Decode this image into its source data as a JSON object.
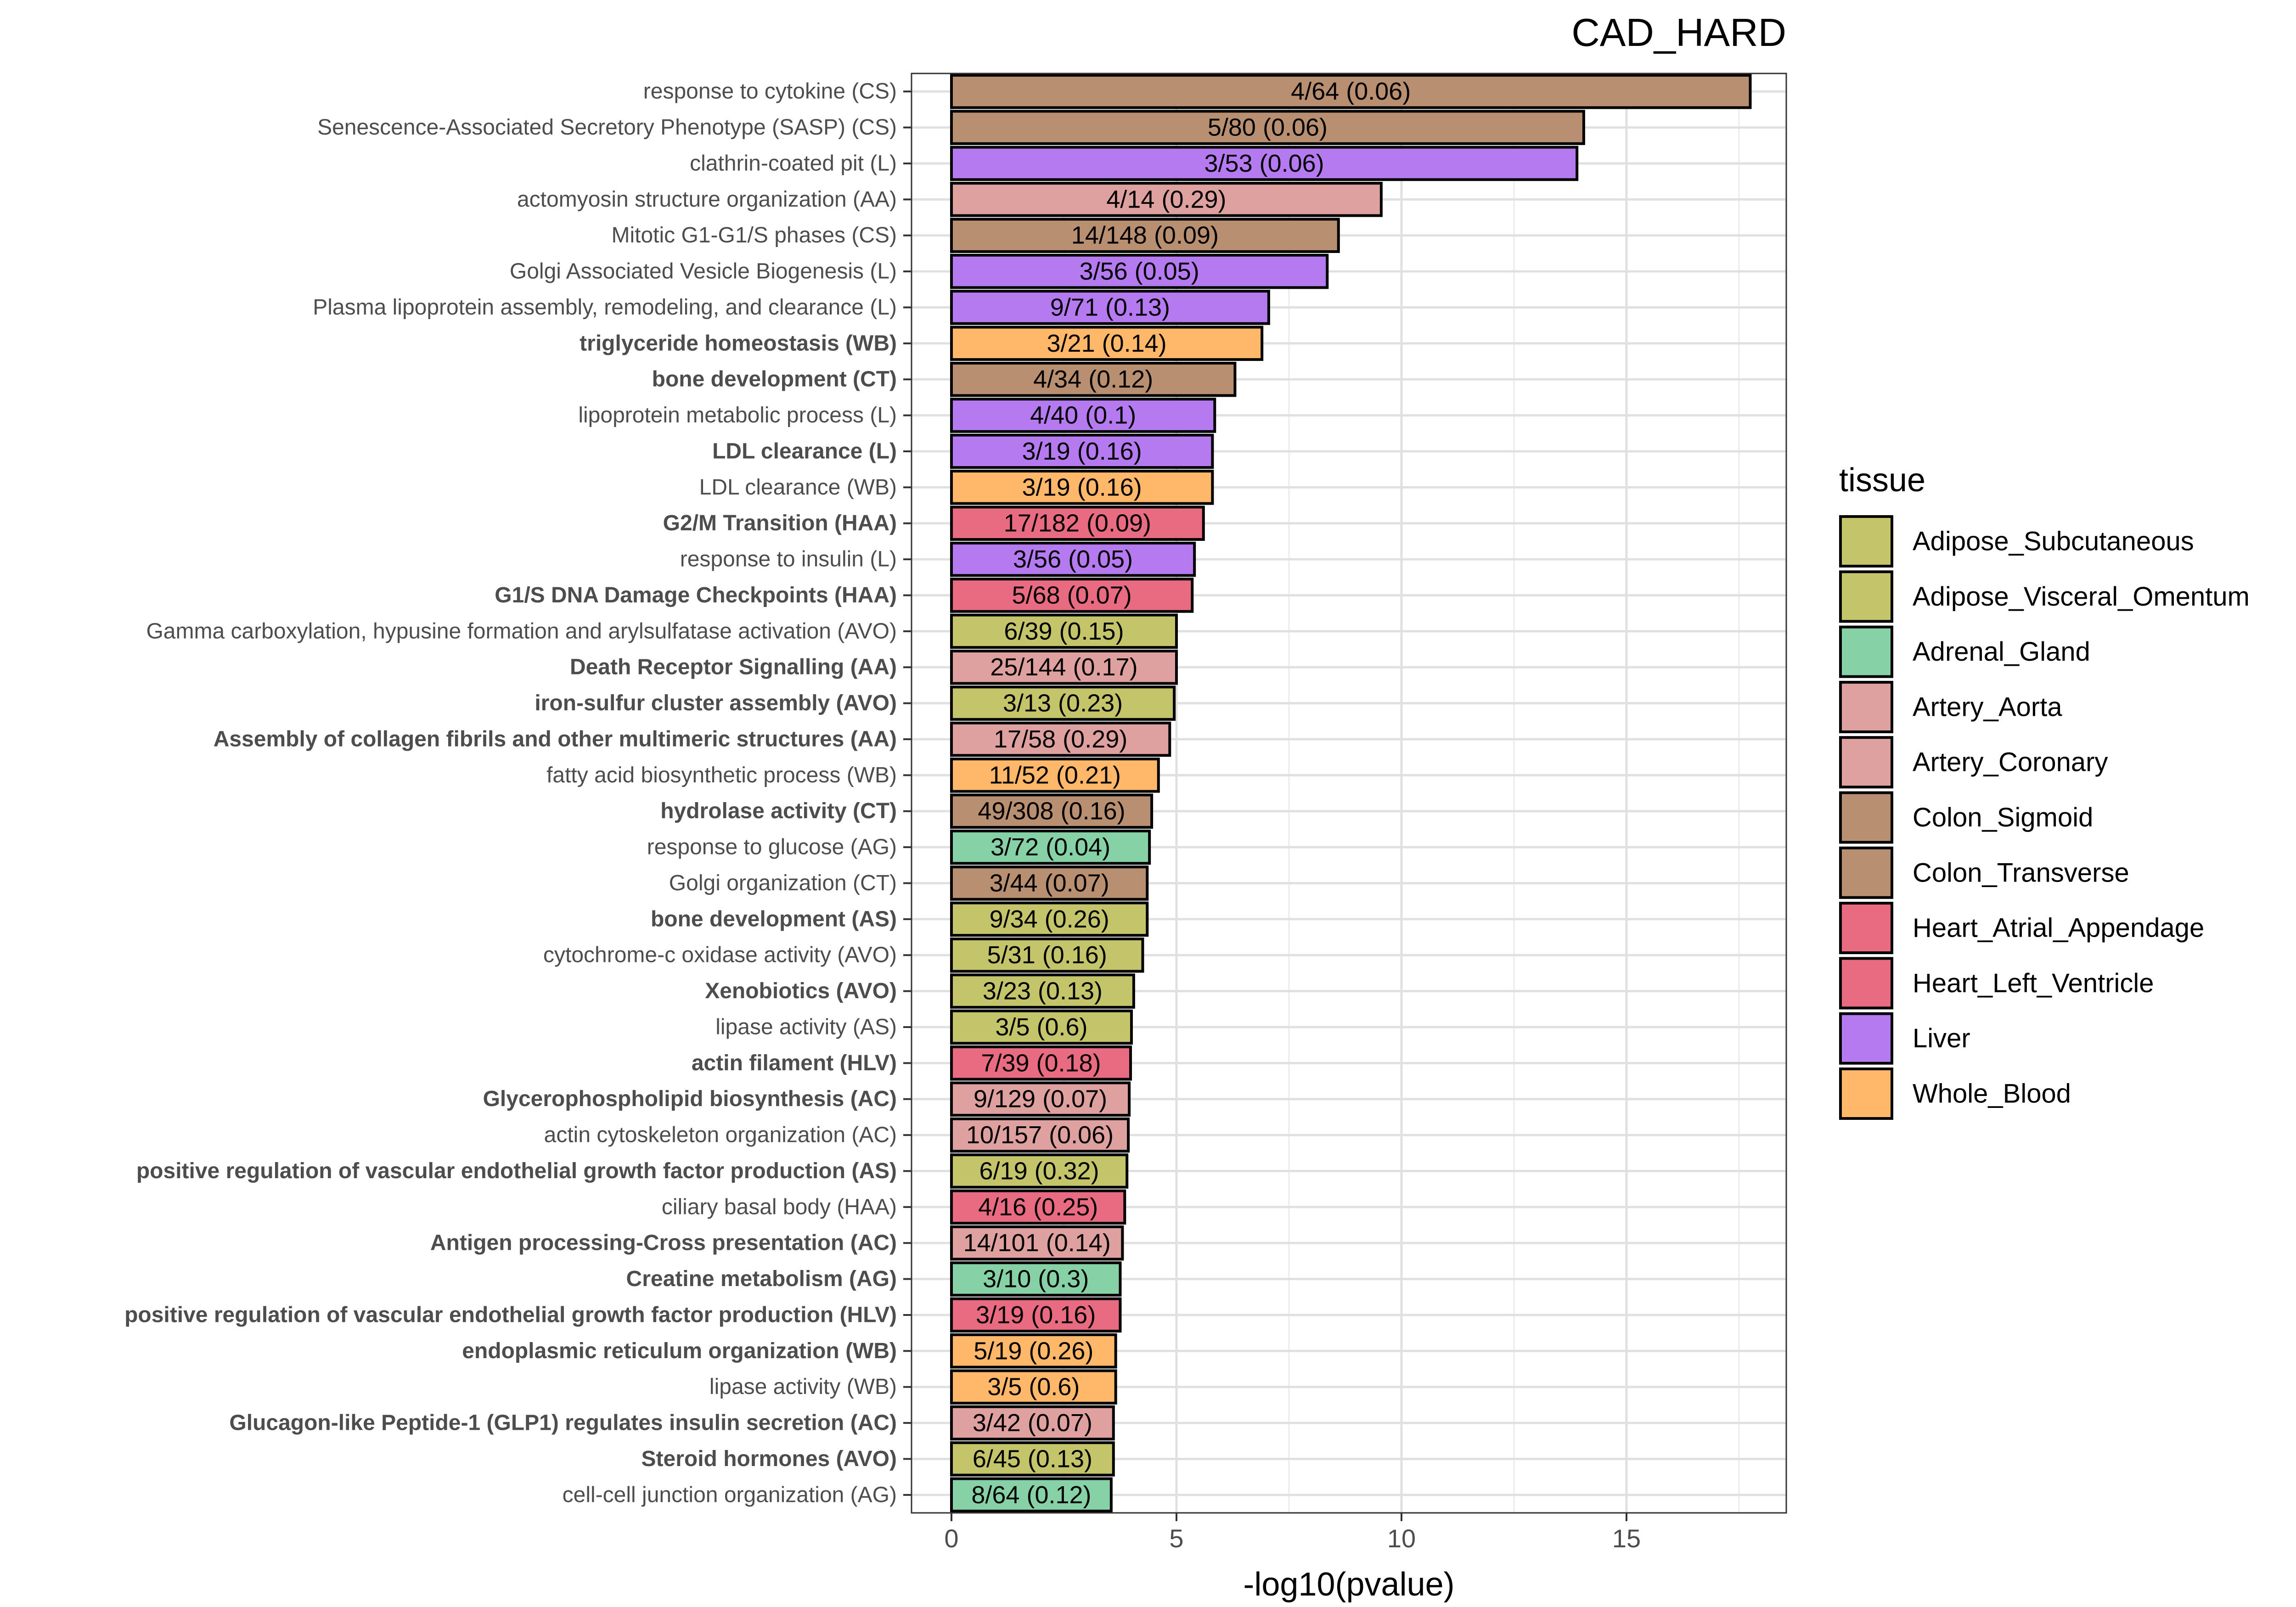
{
  "chart_data": {
    "type": "bar",
    "orientation": "horizontal",
    "title": "CAD_HARD",
    "xlabel": "-log10(pvalue)",
    "ylabel": "",
    "xlim": [
      0,
      18.5
    ],
    "xticks": [
      0,
      5,
      10,
      15
    ],
    "grid": true,
    "legend_title": "tissue",
    "legend_position": "right",
    "legend": [
      {
        "name": "Adipose_Subcutaneous",
        "color": "#c4c46a"
      },
      {
        "name": "Adipose_Visceral_Omentum",
        "color": "#c4c46a"
      },
      {
        "name": "Adrenal_Gland",
        "color": "#86d1a6"
      },
      {
        "name": "Artery_Aorta",
        "color": "#dfa0a0"
      },
      {
        "name": "Artery_Coronary",
        "color": "#dfa0a0"
      },
      {
        "name": "Colon_Sigmoid",
        "color": "#b98f71"
      },
      {
        "name": "Colon_Transverse",
        "color": "#b98f71"
      },
      {
        "name": "Heart_Atrial_Appendage",
        "color": "#e86b82"
      },
      {
        "name": "Heart_Left_Ventricle",
        "color": "#e86b82"
      },
      {
        "name": "Liver",
        "color": "#b57aef"
      },
      {
        "name": "Whole_Blood",
        "color": "#ffb86a"
      }
    ],
    "bars": [
      {
        "term": "response to cytokine (CS)",
        "bold": false,
        "tissue": "Colon_Sigmoid",
        "value": 17.75,
        "label": "4/64 (0.06)"
      },
      {
        "term": "Senescence-Associated Secretory Phenotype (SASP) (CS)",
        "bold": false,
        "tissue": "Colon_Sigmoid",
        "value": 14.05,
        "label": "5/80 (0.06)"
      },
      {
        "term": "clathrin-coated pit (L)",
        "bold": false,
        "tissue": "Liver",
        "value": 13.9,
        "label": "3/53 (0.06)"
      },
      {
        "term": "actomyosin structure organization (AA)",
        "bold": false,
        "tissue": "Artery_Aorta",
        "value": 9.55,
        "label": "4/14 (0.29)"
      },
      {
        "term": "Mitotic G1-G1/S phases (CS)",
        "bold": false,
        "tissue": "Colon_Sigmoid",
        "value": 8.6,
        "label": "14/148 (0.09)"
      },
      {
        "term": "Golgi Associated Vesicle Biogenesis (L)",
        "bold": false,
        "tissue": "Liver",
        "value": 8.35,
        "label": "3/56 (0.05)"
      },
      {
        "term": "Plasma lipoprotein assembly, remodeling, and clearance (L)",
        "bold": false,
        "tissue": "Liver",
        "value": 7.05,
        "label": "9/71 (0.13)"
      },
      {
        "term": "triglyceride homeostasis (WB)",
        "bold": true,
        "tissue": "Whole_Blood",
        "value": 6.9,
        "label": "3/21 (0.14)"
      },
      {
        "term": "bone development (CT)",
        "bold": true,
        "tissue": "Colon_Transverse",
        "value": 6.3,
        "label": "4/34 (0.12)"
      },
      {
        "term": "lipoprotein metabolic process (L)",
        "bold": false,
        "tissue": "Liver",
        "value": 5.85,
        "label": "4/40 (0.1)"
      },
      {
        "term": "LDL clearance (L)",
        "bold": true,
        "tissue": "Liver",
        "value": 5.8,
        "label": "3/19 (0.16)"
      },
      {
        "term": "LDL clearance (WB)",
        "bold": false,
        "tissue": "Whole_Blood",
        "value": 5.8,
        "label": "3/19 (0.16)"
      },
      {
        "term": "G2/M Transition (HAA)",
        "bold": true,
        "tissue": "Heart_Atrial_Appendage",
        "value": 5.6,
        "label": "17/182 (0.09)"
      },
      {
        "term": "response to insulin (L)",
        "bold": false,
        "tissue": "Liver",
        "value": 5.4,
        "label": "3/56 (0.05)"
      },
      {
        "term": "G1/S DNA Damage Checkpoints (HAA)",
        "bold": true,
        "tissue": "Heart_Atrial_Appendage",
        "value": 5.35,
        "label": "5/68 (0.07)"
      },
      {
        "term": "Gamma carboxylation, hypusine formation and arylsulfatase activation (AVO)",
        "bold": false,
        "tissue": "Adipose_Visceral_Omentum",
        "value": 5.0,
        "label": "6/39 (0.15)"
      },
      {
        "term": "Death Receptor Signalling (AA)",
        "bold": true,
        "tissue": "Artery_Aorta",
        "value": 5.0,
        "label": "25/144 (0.17)"
      },
      {
        "term": "iron-sulfur cluster assembly (AVO)",
        "bold": true,
        "tissue": "Adipose_Visceral_Omentum",
        "value": 4.95,
        "label": "3/13 (0.23)"
      },
      {
        "term": "Assembly of collagen fibrils and other multimeric structures (AA)",
        "bold": true,
        "tissue": "Artery_Aorta",
        "value": 4.85,
        "label": "17/58 (0.29)"
      },
      {
        "term": "fatty acid biosynthetic process (WB)",
        "bold": false,
        "tissue": "Whole_Blood",
        "value": 4.6,
        "label": "11/52 (0.21)"
      },
      {
        "term": "hydrolase activity (CT)",
        "bold": true,
        "tissue": "Colon_Transverse",
        "value": 4.45,
        "label": "49/308 (0.16)"
      },
      {
        "term": "response to glucose (AG)",
        "bold": false,
        "tissue": "Adrenal_Gland",
        "value": 4.4,
        "label": "3/72 (0.04)"
      },
      {
        "term": "Golgi organization (CT)",
        "bold": false,
        "tissue": "Colon_Transverse",
        "value": 4.35,
        "label": "3/44 (0.07)"
      },
      {
        "term": "bone development (AS)",
        "bold": true,
        "tissue": "Adipose_Subcutaneous",
        "value": 4.35,
        "label": "9/34 (0.26)"
      },
      {
        "term": "cytochrome-c oxidase activity (AVO)",
        "bold": false,
        "tissue": "Adipose_Visceral_Omentum",
        "value": 4.25,
        "label": "5/31 (0.16)"
      },
      {
        "term": "Xenobiotics (AVO)",
        "bold": true,
        "tissue": "Adipose_Visceral_Omentum",
        "value": 4.05,
        "label": "3/23 (0.13)"
      },
      {
        "term": "lipase activity (AS)",
        "bold": false,
        "tissue": "Adipose_Subcutaneous",
        "value": 4.0,
        "label": "3/5 (0.6)"
      },
      {
        "term": "actin filament (HLV)",
        "bold": true,
        "tissue": "Heart_Left_Ventricle",
        "value": 3.98,
        "label": "7/39 (0.18)"
      },
      {
        "term": "Glycerophospholipid biosynthesis (AC)",
        "bold": true,
        "tissue": "Artery_Coronary",
        "value": 3.95,
        "label": "9/129 (0.07)"
      },
      {
        "term": "actin cytoskeleton organization (AC)",
        "bold": false,
        "tissue": "Artery_Coronary",
        "value": 3.93,
        "label": "10/157 (0.06)"
      },
      {
        "term": "positive regulation of vascular endothelial growth factor production (AS)",
        "bold": true,
        "tissue": "Adipose_Subcutaneous",
        "value": 3.9,
        "label": "6/19 (0.32)"
      },
      {
        "term": "ciliary basal body (HAA)",
        "bold": false,
        "tissue": "Heart_Atrial_Appendage",
        "value": 3.85,
        "label": "4/16 (0.25)"
      },
      {
        "term": "Antigen processing-Cross presentation (AC)",
        "bold": true,
        "tissue": "Artery_Coronary",
        "value": 3.8,
        "label": "14/101 (0.14)"
      },
      {
        "term": "Creatine metabolism (AG)",
        "bold": true,
        "tissue": "Adrenal_Gland",
        "value": 3.75,
        "label": "3/10 (0.3)"
      },
      {
        "term": "positive regulation of vascular endothelial growth factor production (HLV)",
        "bold": true,
        "tissue": "Heart_Left_Ventricle",
        "value": 3.75,
        "label": "3/19 (0.16)"
      },
      {
        "term": "endoplasmic reticulum organization (WB)",
        "bold": true,
        "tissue": "Whole_Blood",
        "value": 3.65,
        "label": "5/19 (0.26)"
      },
      {
        "term": "lipase activity (WB)",
        "bold": false,
        "tissue": "Whole_Blood",
        "value": 3.65,
        "label": "3/5 (0.6)"
      },
      {
        "term": "Glucagon-like Peptide-1 (GLP1) regulates insulin secretion (AC)",
        "bold": true,
        "tissue": "Artery_Coronary",
        "value": 3.6,
        "label": "3/42 (0.07)"
      },
      {
        "term": "Steroid hormones (AVO)",
        "bold": true,
        "tissue": "Adipose_Visceral_Omentum",
        "value": 3.6,
        "label": "6/45 (0.13)"
      },
      {
        "term": "cell-cell junction organization (AG)",
        "bold": false,
        "tissue": "Adrenal_Gland",
        "value": 3.55,
        "label": "8/64 (0.12)"
      }
    ]
  }
}
